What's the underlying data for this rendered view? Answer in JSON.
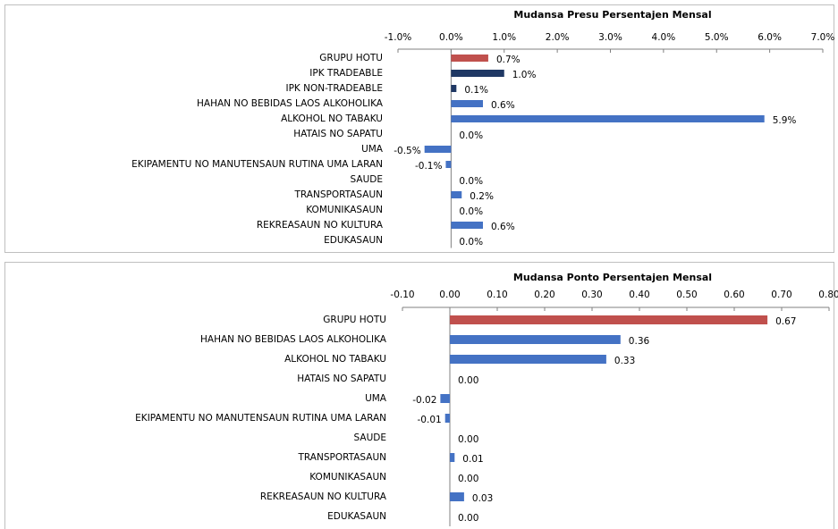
{
  "chart_data": [
    {
      "type": "bar",
      "orientation": "horizontal",
      "title": "Mudansa Presu Persentajen Mensal",
      "categories": [
        "GRUPU HOTU",
        "IPK TRADEABLE",
        "IPK NON-TRADEABLE",
        "HAHAN NO BEBIDAS LAOS ALKOHOLIKA",
        "ALKOHOL NO TABAKU",
        "HATAIS NO SAPATU",
        "UMA",
        "EKIPAMENTU NO MANUTENSAUN RUTINA UMA LARAN",
        "SAUDE",
        "TRANSPORTASAUN",
        "KOMUNIKASAUN",
        "REKREASAUN NO KULTURA",
        "EDUKASAUN"
      ],
      "values": [
        0.7,
        1.0,
        0.1,
        0.6,
        5.9,
        0.0,
        -0.5,
        -0.1,
        0.0,
        0.2,
        0.0,
        0.6,
        0.0
      ],
      "value_labels": [
        "0.7%",
        "1.0%",
        "0.1%",
        "0.6%",
        "5.9%",
        "0.0%",
        "-0.5%",
        "-0.1%",
        "0.0%",
        "0.2%",
        "0.0%",
        "0.6%",
        "0.0%"
      ],
      "colors": [
        "#c0504d",
        "#1f3864",
        "#1f3864",
        "#4472c4",
        "#4472c4",
        "#4472c4",
        "#4472c4",
        "#4472c4",
        "#4472c4",
        "#4472c4",
        "#4472c4",
        "#4472c4",
        "#4472c4"
      ],
      "xlim": [
        -1,
        7
      ],
      "xticks": [
        {
          "value": -1,
          "label": "-1.0%"
        },
        {
          "value": 0,
          "label": "0.0%"
        },
        {
          "value": 1,
          "label": "1.0%"
        },
        {
          "value": 2,
          "label": "2.0%"
        },
        {
          "value": 3,
          "label": "3.0%"
        },
        {
          "value": 4,
          "label": "4.0%"
        },
        {
          "value": 5,
          "label": "5.0%"
        },
        {
          "value": 6,
          "label": "6.0%"
        },
        {
          "value": 7,
          "label": "7.0%"
        }
      ]
    },
    {
      "type": "bar",
      "orientation": "horizontal",
      "title": "Mudansa Ponto Persentajen Mensal",
      "categories": [
        "GRUPU HOTU",
        "HAHAN NO BEBIDAS LAOS ALKOHOLIKA",
        "ALKOHOL NO TABAKU",
        "HATAIS NO SAPATU",
        "UMA",
        "EKIPAMENTU NO MANUTENSAUN RUTINA UMA LARAN",
        "SAUDE",
        "TRANSPORTASAUN",
        "KOMUNIKASAUN",
        "REKREASAUN NO KULTURA",
        "EDUKASAUN"
      ],
      "values": [
        0.67,
        0.36,
        0.33,
        0.0,
        -0.02,
        -0.01,
        0.0,
        0.01,
        0.0,
        0.03,
        0.0
      ],
      "value_labels": [
        "0.67",
        "0.36",
        "0.33",
        "0.00",
        "-0.02",
        "-0.01",
        "0.00",
        "0.01",
        "0.00",
        "0.03",
        "0.00"
      ],
      "colors": [
        "#c0504d",
        "#4472c4",
        "#4472c4",
        "#4472c4",
        "#4472c4",
        "#4472c4",
        "#4472c4",
        "#4472c4",
        "#4472c4",
        "#4472c4",
        "#4472c4"
      ],
      "xlim": [
        -0.1,
        0.8
      ],
      "xticks": [
        {
          "value": -0.1,
          "label": "-0.10"
        },
        {
          "value": 0,
          "label": "0.00"
        },
        {
          "value": 0.1,
          "label": "0.10"
        },
        {
          "value": 0.2,
          "label": "0.20"
        },
        {
          "value": 0.3,
          "label": "0.30"
        },
        {
          "value": 0.4,
          "label": "0.40"
        },
        {
          "value": 0.5,
          "label": "0.50"
        },
        {
          "value": 0.6,
          "label": "0.60"
        },
        {
          "value": 0.7,
          "label": "0.70"
        },
        {
          "value": 0.8,
          "label": "0.80"
        }
      ]
    }
  ]
}
